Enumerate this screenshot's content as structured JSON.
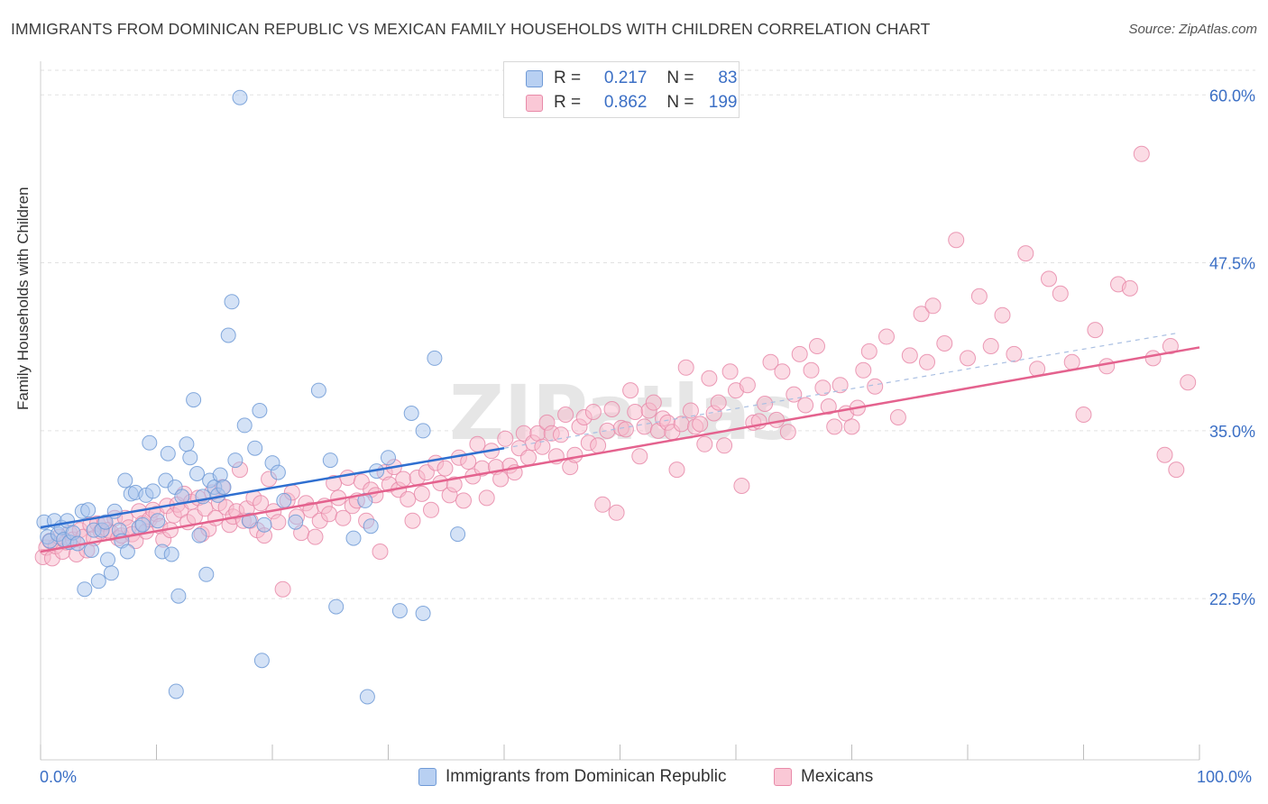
{
  "title": "IMMIGRANTS FROM DOMINICAN REPUBLIC VS MEXICAN FAMILY HOUSEHOLDS WITH CHILDREN CORRELATION CHART",
  "source": "Source: ZipAtlas.com",
  "watermark": "ZIPatlas",
  "legend": {
    "r_label": "R =",
    "n_label": "N =",
    "rows": [
      {
        "r": "0.217",
        "n": "83"
      },
      {
        "r": "0.862",
        "n": "199"
      }
    ]
  },
  "colors": {
    "blue_fill": "#a9c6ee",
    "blue_stroke": "#6f9ad6",
    "blue_line": "#2f6fd0",
    "pink_fill": "#f7b9cb",
    "pink_stroke": "#e88aa9",
    "pink_line": "#e4628e",
    "tick_text": "#3b6fc5",
    "grid": "#e2e2e2"
  },
  "chart_data": {
    "type": "scatter",
    "title": "IMMIGRANTS FROM DOMINICAN REPUBLIC VS MEXICAN FAMILY HOUSEHOLDS WITH CHILDREN CORRELATION CHART",
    "xlabel": "",
    "ylabel": "Family Households with Children",
    "xlim": [
      0,
      100
    ],
    "ylim": [
      10.5,
      62.5
    ],
    "x_tick_labels": [
      "0.0%",
      "100.0%"
    ],
    "y_ticks": [
      22.5,
      35.0,
      47.5,
      60.0
    ],
    "y_tick_labels": [
      "22.5%",
      "35.0%",
      "47.5%",
      "60.0%"
    ],
    "grid": true,
    "legend_position": "top-center",
    "series": [
      {
        "name": "Immigrants from Dominican Republic",
        "r": 0.217,
        "n": 83,
        "trend": {
          "x": [
            0,
            40
          ],
          "y": [
            27.8,
            33.7
          ]
        },
        "points": [
          [
            0.3,
            28.2
          ],
          [
            0.6,
            27.1
          ],
          [
            0.8,
            26.8
          ],
          [
            1.2,
            28.3
          ],
          [
            1.5,
            27.3
          ],
          [
            1.8,
            27.8
          ],
          [
            2.0,
            26.9
          ],
          [
            2.3,
            28.3
          ],
          [
            2.5,
            26.7
          ],
          [
            2.8,
            27.4
          ],
          [
            3.2,
            26.6
          ],
          [
            3.6,
            29.0
          ],
          [
            3.8,
            23.2
          ],
          [
            4.1,
            29.1
          ],
          [
            4.4,
            26.1
          ],
          [
            4.6,
            27.6
          ],
          [
            5.0,
            23.8
          ],
          [
            5.3,
            27.6
          ],
          [
            5.6,
            28.2
          ],
          [
            5.8,
            25.4
          ],
          [
            6.1,
            24.4
          ],
          [
            6.4,
            29.0
          ],
          [
            6.8,
            27.6
          ],
          [
            7.0,
            26.8
          ],
          [
            7.3,
            31.3
          ],
          [
            7.5,
            26.0
          ],
          [
            7.8,
            30.3
          ],
          [
            8.2,
            30.4
          ],
          [
            8.5,
            27.8
          ],
          [
            8.8,
            28.0
          ],
          [
            9.1,
            30.2
          ],
          [
            9.4,
            34.1
          ],
          [
            9.7,
            30.5
          ],
          [
            10.1,
            28.3
          ],
          [
            10.5,
            26.0
          ],
          [
            10.8,
            31.3
          ],
          [
            11.0,
            33.3
          ],
          [
            11.3,
            25.8
          ],
          [
            11.6,
            30.8
          ],
          [
            11.9,
            22.7
          ],
          [
            12.2,
            30.1
          ],
          [
            12.6,
            34.0
          ],
          [
            12.9,
            33.0
          ],
          [
            13.2,
            37.3
          ],
          [
            13.5,
            31.8
          ],
          [
            13.7,
            27.2
          ],
          [
            14.0,
            30.1
          ],
          [
            14.3,
            24.3
          ],
          [
            14.6,
            31.3
          ],
          [
            15.0,
            30.8
          ],
          [
            15.3,
            30.2
          ],
          [
            15.5,
            31.7
          ],
          [
            15.8,
            30.8
          ],
          [
            16.2,
            42.1
          ],
          [
            16.5,
            44.6
          ],
          [
            16.8,
            32.8
          ],
          [
            17.2,
            59.8
          ],
          [
            17.6,
            35.4
          ],
          [
            18.0,
            28.3
          ],
          [
            18.5,
            33.7
          ],
          [
            18.9,
            36.5
          ],
          [
            19.3,
            28.0
          ],
          [
            20.0,
            32.6
          ],
          [
            20.5,
            31.9
          ],
          [
            21.0,
            29.8
          ],
          [
            22.0,
            28.2
          ],
          [
            24.0,
            38.0
          ],
          [
            25.0,
            32.8
          ],
          [
            25.5,
            21.9
          ],
          [
            27.0,
            27.0
          ],
          [
            28.0,
            29.8
          ],
          [
            28.5,
            27.9
          ],
          [
            29.0,
            32.0
          ],
          [
            30.0,
            33.0
          ],
          [
            31.0,
            21.6
          ],
          [
            32.0,
            36.3
          ],
          [
            33.0,
            35.0
          ],
          [
            34.0,
            40.4
          ],
          [
            11.7,
            15.6
          ],
          [
            19.1,
            17.9
          ],
          [
            28.2,
            15.2
          ],
          [
            33.0,
            21.4
          ],
          [
            36.0,
            27.3
          ]
        ]
      },
      {
        "name": "Mexicans",
        "r": 0.862,
        "n": 199,
        "trend": {
          "x": [
            0,
            100
          ],
          "y": [
            26.0,
            41.2
          ]
        },
        "points": [
          [
            0.2,
            25.6
          ],
          [
            0.5,
            26.3
          ],
          [
            0.8,
            26.8
          ],
          [
            1.0,
            25.5
          ],
          [
            1.3,
            26.4
          ],
          [
            1.6,
            27.1
          ],
          [
            1.9,
            26.0
          ],
          [
            2.2,
            26.7
          ],
          [
            2.5,
            27.4
          ],
          [
            2.8,
            26.9
          ],
          [
            3.1,
            25.8
          ],
          [
            3.4,
            27.6
          ],
          [
            3.7,
            27.1
          ],
          [
            4.0,
            26.1
          ],
          [
            4.3,
            28.0
          ],
          [
            4.6,
            27.0
          ],
          [
            4.9,
            28.1
          ],
          [
            5.2,
            27.5
          ],
          [
            5.5,
            28.1
          ],
          [
            5.8,
            27.6
          ],
          [
            6.1,
            27.4
          ],
          [
            6.4,
            28.5
          ],
          [
            6.7,
            27.0
          ],
          [
            7.0,
            27.2
          ],
          [
            7.3,
            28.5
          ],
          [
            7.6,
            27.8
          ],
          [
            7.9,
            27.3
          ],
          [
            8.2,
            26.8
          ],
          [
            8.5,
            29.0
          ],
          [
            8.8,
            28.1
          ],
          [
            9.1,
            27.5
          ],
          [
            9.4,
            28.4
          ],
          [
            9.7,
            29.1
          ],
          [
            10.0,
            28.8
          ],
          [
            10.3,
            27.9
          ],
          [
            10.6,
            26.9
          ],
          [
            10.9,
            29.4
          ],
          [
            11.2,
            27.6
          ],
          [
            11.5,
            28.7
          ],
          [
            11.8,
            29.5
          ],
          [
            12.1,
            29.1
          ],
          [
            12.4,
            30.3
          ],
          [
            12.7,
            28.2
          ],
          [
            13.0,
            29.7
          ],
          [
            13.3,
            28.6
          ],
          [
            13.6,
            30.0
          ],
          [
            13.9,
            27.3
          ],
          [
            14.2,
            29.2
          ],
          [
            14.5,
            27.7
          ],
          [
            14.8,
            30.4
          ],
          [
            15.1,
            28.5
          ],
          [
            15.4,
            29.6
          ],
          [
            15.7,
            30.8
          ],
          [
            16.0,
            29.3
          ],
          [
            16.3,
            28.0
          ],
          [
            16.6,
            28.6
          ],
          [
            16.9,
            29.0
          ],
          [
            17.2,
            32.1
          ],
          [
            17.5,
            28.3
          ],
          [
            17.8,
            29.2
          ],
          [
            18.1,
            28.3
          ],
          [
            18.4,
            30.0
          ],
          [
            18.7,
            27.6
          ],
          [
            19.0,
            29.6
          ],
          [
            19.3,
            27.2
          ],
          [
            19.7,
            31.4
          ],
          [
            20.1,
            29.0
          ],
          [
            20.5,
            28.2
          ],
          [
            20.9,
            23.2
          ],
          [
            21.3,
            29.8
          ],
          [
            21.7,
            30.4
          ],
          [
            22.1,
            28.6
          ],
          [
            22.5,
            27.4
          ],
          [
            22.9,
            29.6
          ],
          [
            23.3,
            29.1
          ],
          [
            23.7,
            27.1
          ],
          [
            24.1,
            28.3
          ],
          [
            24.5,
            29.4
          ],
          [
            24.9,
            28.8
          ],
          [
            25.3,
            31.1
          ],
          [
            25.7,
            30.0
          ],
          [
            26.1,
            28.5
          ],
          [
            26.5,
            31.5
          ],
          [
            26.9,
            29.4
          ],
          [
            27.3,
            29.8
          ],
          [
            27.7,
            31.2
          ],
          [
            28.1,
            28.3
          ],
          [
            28.5,
            30.6
          ],
          [
            28.9,
            30.2
          ],
          [
            29.3,
            26.0
          ],
          [
            29.7,
            31.9
          ],
          [
            30.1,
            31.0
          ],
          [
            30.5,
            32.3
          ],
          [
            30.9,
            30.6
          ],
          [
            31.3,
            31.4
          ],
          [
            31.7,
            29.9
          ],
          [
            32.1,
            28.3
          ],
          [
            32.5,
            31.5
          ],
          [
            32.9,
            30.3
          ],
          [
            33.3,
            31.9
          ],
          [
            33.7,
            29.1
          ],
          [
            34.1,
            32.6
          ],
          [
            34.5,
            31.1
          ],
          [
            34.9,
            32.2
          ],
          [
            35.3,
            30.2
          ],
          [
            35.7,
            31.0
          ],
          [
            36.1,
            33.0
          ],
          [
            36.5,
            29.8
          ],
          [
            36.9,
            32.7
          ],
          [
            37.3,
            31.6
          ],
          [
            37.7,
            34.0
          ],
          [
            38.1,
            32.2
          ],
          [
            38.5,
            30.0
          ],
          [
            38.9,
            33.5
          ],
          [
            39.3,
            32.3
          ],
          [
            39.7,
            31.4
          ],
          [
            40.1,
            34.4
          ],
          [
            40.5,
            32.4
          ],
          [
            40.9,
            31.9
          ],
          [
            41.3,
            33.7
          ],
          [
            41.7,
            34.8
          ],
          [
            42.1,
            33.0
          ],
          [
            42.5,
            34.1
          ],
          [
            42.9,
            34.8
          ],
          [
            43.3,
            33.8
          ],
          [
            43.7,
            35.6
          ],
          [
            44.1,
            34.8
          ],
          [
            44.5,
            33.1
          ],
          [
            44.9,
            34.7
          ],
          [
            45.3,
            36.2
          ],
          [
            45.7,
            32.3
          ],
          [
            46.1,
            33.2
          ],
          [
            46.5,
            35.3
          ],
          [
            46.9,
            36.0
          ],
          [
            47.3,
            34.1
          ],
          [
            47.7,
            36.4
          ],
          [
            48.1,
            33.9
          ],
          [
            48.5,
            29.5
          ],
          [
            48.9,
            35.0
          ],
          [
            49.3,
            36.6
          ],
          [
            49.7,
            28.9
          ],
          [
            50.1,
            35.2
          ],
          [
            50.5,
            35.1
          ],
          [
            50.9,
            38.0
          ],
          [
            51.3,
            36.4
          ],
          [
            51.7,
            33.1
          ],
          [
            52.1,
            35.3
          ],
          [
            52.5,
            36.5
          ],
          [
            52.9,
            37.1
          ],
          [
            53.3,
            35.0
          ],
          [
            53.7,
            35.9
          ],
          [
            54.1,
            35.6
          ],
          [
            54.5,
            34.9
          ],
          [
            54.9,
            32.1
          ],
          [
            55.3,
            35.5
          ],
          [
            55.7,
            39.7
          ],
          [
            56.1,
            36.5
          ],
          [
            56.5,
            35.3
          ],
          [
            56.9,
            35.5
          ],
          [
            57.3,
            34.0
          ],
          [
            57.7,
            38.9
          ],
          [
            58.1,
            36.3
          ],
          [
            58.5,
            37.1
          ],
          [
            59.0,
            33.9
          ],
          [
            59.5,
            39.4
          ],
          [
            60.0,
            38.0
          ],
          [
            60.5,
            30.9
          ],
          [
            61.0,
            38.4
          ],
          [
            61.5,
            35.6
          ],
          [
            62.0,
            35.7
          ],
          [
            62.5,
            37.0
          ],
          [
            63.0,
            40.1
          ],
          [
            63.5,
            35.8
          ],
          [
            64.0,
            39.4
          ],
          [
            64.5,
            34.9
          ],
          [
            65.0,
            37.7
          ],
          [
            65.5,
            40.7
          ],
          [
            66.0,
            36.9
          ],
          [
            66.5,
            39.5
          ],
          [
            67.0,
            41.3
          ],
          [
            67.5,
            38.2
          ],
          [
            68.0,
            36.8
          ],
          [
            68.5,
            35.3
          ],
          [
            69.0,
            38.4
          ],
          [
            69.5,
            36.3
          ],
          [
            70.0,
            35.3
          ],
          [
            70.5,
            36.7
          ],
          [
            71.0,
            39.5
          ],
          [
            71.5,
            40.9
          ],
          [
            72.0,
            38.3
          ],
          [
            73.0,
            42.0
          ],
          [
            74.0,
            36.0
          ],
          [
            75.0,
            40.6
          ],
          [
            76.0,
            43.7
          ],
          [
            76.5,
            40.1
          ],
          [
            77.0,
            44.3
          ],
          [
            78.0,
            41.5
          ],
          [
            79.0,
            49.2
          ],
          [
            80.0,
            40.4
          ],
          [
            81.0,
            45.0
          ],
          [
            82.0,
            41.3
          ],
          [
            83.0,
            43.6
          ],
          [
            84.0,
            40.7
          ],
          [
            85.0,
            48.2
          ],
          [
            86.0,
            39.6
          ],
          [
            87.0,
            46.3
          ],
          [
            88.0,
            45.2
          ],
          [
            89.0,
            40.1
          ],
          [
            90.0,
            36.2
          ],
          [
            91.0,
            42.5
          ],
          [
            92.0,
            39.8
          ],
          [
            93.0,
            45.9
          ],
          [
            94.0,
            45.6
          ],
          [
            95.0,
            55.6
          ],
          [
            96.0,
            40.4
          ],
          [
            97.0,
            33.2
          ],
          [
            98.0,
            32.1
          ],
          [
            99.0,
            38.6
          ],
          [
            97.5,
            41.3
          ]
        ]
      }
    ]
  },
  "bottom_legend": [
    "Immigrants from Dominican Republic",
    "Mexicans"
  ]
}
